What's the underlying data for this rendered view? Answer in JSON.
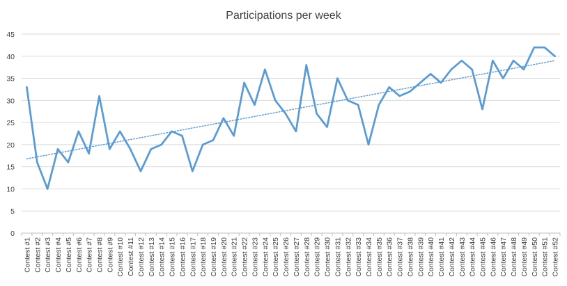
{
  "chart_data": {
    "type": "line",
    "title": "Participations per week",
    "xlabel": "",
    "ylabel": "",
    "ylim": [
      0,
      45
    ],
    "yticks": [
      0,
      5,
      10,
      15,
      20,
      25,
      30,
      35,
      40,
      45
    ],
    "grid": true,
    "legend": "none",
    "categories": [
      "Contest #1",
      "Contest #2",
      "Contest #3",
      "Contest #4",
      "Contest #5",
      "Contest #6",
      "Contest #7",
      "Contest #8",
      "Contest #9",
      "Contest #10",
      "Contest #11",
      "Contest #12",
      "Contest #13",
      "Contest #14",
      "Contest #15",
      "Contest #16",
      "Contest #17",
      "Contest #18",
      "Contest #19",
      "Contest #20",
      "Contest #21",
      "Contest #22",
      "Contest #23",
      "Contest #24",
      "Contest #25",
      "Contest #26",
      "Contest #27",
      "Contest #28",
      "Contest #29",
      "Contest #30",
      "Contest #31",
      "Contest #32",
      "Contest #33",
      "Contest #34",
      "Contest #35",
      "Contest #36",
      "Contest #37",
      "Contest #38",
      "Contest #39",
      "Contest #40",
      "Contest #41",
      "Contest #42",
      "Contest #43",
      "Contest #44",
      "Contest #45",
      "Contest #46",
      "Contest #47",
      "Contest #48",
      "Contest #49",
      "Contest #50",
      "Contest #51",
      "Contest #52"
    ],
    "series": [
      {
        "values": [
          33,
          16,
          10,
          19,
          16,
          23,
          18,
          31,
          19,
          23,
          19,
          14,
          19,
          20,
          23,
          22,
          14,
          20,
          21,
          26,
          22,
          34,
          29,
          37,
          30,
          27,
          23,
          38,
          27,
          24,
          35,
          30,
          29,
          20,
          29,
          33,
          31,
          32,
          34,
          36,
          34,
          37,
          39,
          37,
          28,
          39,
          35,
          39,
          37,
          42,
          42,
          40
        ],
        "color": "#5b9bd5",
        "style": "solid"
      }
    ],
    "trendline": {
      "type": "linear",
      "start": 16.8,
      "end": 39.0,
      "color": "#5b9bd5",
      "style": "dotted"
    }
  }
}
